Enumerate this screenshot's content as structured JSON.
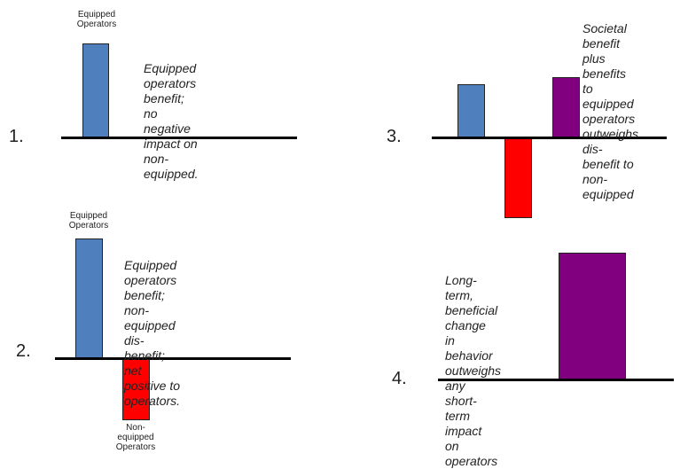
{
  "colors": {
    "equipped": "#4f7fbd",
    "non_equipped": "#ff0000",
    "societal": "#800080",
    "baseline": "#000000"
  },
  "panels": [
    {
      "number": "1.",
      "top_label": "Equipped\nOperators",
      "description": "Equipped operators\nbenefit; no negative\nimpact on non-\nequipped."
    },
    {
      "number": "2.",
      "top_label": "Equipped\nOperators",
      "bottom_label": "Non-\nequipped\nOperators",
      "description": "Equipped operators\nbenefit; non-\nequipped dis-benefit;\nnet positive to\noperators."
    },
    {
      "number": "3.",
      "description": "Societal benefit\nplus benefits to\nequipped\noperators\noutweighs dis-\nbenefit to non-\nequipped"
    },
    {
      "number": "4.",
      "description": "Long-term,\nbeneficial change\nin behavior\noutweighs any\nshort-term impact\non operators"
    }
  ]
}
